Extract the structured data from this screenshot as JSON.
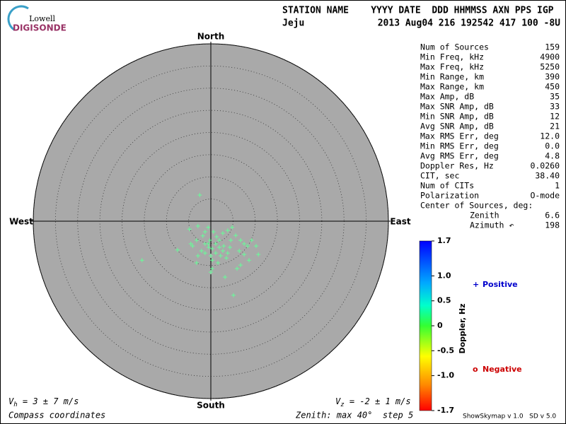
{
  "header": {
    "logo_top": "Lowell",
    "logo_bottom": "DIGISONDE",
    "columns": "STATION NAME    YYYY DATE  DDD HHMMSS AXN PPS IGP",
    "station": "Jeju",
    "record": "2013 Aug04 216 192542 417 100 -8U"
  },
  "chart_data": {
    "type": "skymap",
    "directions": {
      "north": "North",
      "south": "South",
      "east": "East",
      "west": "West"
    },
    "rlim": [
      0,
      40
    ],
    "rticks": [
      5,
      10,
      15,
      20,
      25,
      30,
      35,
      40
    ],
    "xlim": [
      -40,
      40
    ],
    "ylim": [
      -40,
      40
    ],
    "color": "#66ff99",
    "background": "#a9a9a9",
    "x": [
      -2.5,
      -4.8,
      -2.9,
      -0.6,
      -1.8,
      -3.2,
      -4.1,
      -7.5,
      -15.5,
      -1.3,
      -0.5,
      0.3,
      1.1,
      1.9,
      2.7,
      3.8,
      4.8,
      5.6,
      6.7,
      7.5,
      8.3,
      9.2,
      10.2,
      10.7,
      8.6,
      6.7,
      5.9,
      3.5,
      2.2,
      1.1,
      0.0,
      -1.3,
      -2.1,
      -2.9,
      -3.2,
      0.3,
      0.0,
      3.2,
      5.1,
      1.6,
      4.3,
      2.9,
      1.3,
      -0.2,
      0.6,
      2.7,
      -1.3,
      -4.5,
      4.5,
      6.4,
      7.5,
      0.3,
      1.9,
      3.8,
      -0.6
    ],
    "y": [
      5.9,
      -1.8,
      -1.1,
      -1.4,
      -3.3,
      -4.3,
      -5.6,
      -6.5,
      -8.8,
      -5.1,
      -5.9,
      -6.2,
      -5.1,
      -4.3,
      -2.7,
      -2.1,
      -1.4,
      -3.2,
      -4.3,
      -5.1,
      -5.6,
      -4.3,
      -5.6,
      -7.5,
      -8.8,
      -9.9,
      -10.7,
      -8.3,
      -7.8,
      -7.2,
      -7.8,
      -7.2,
      -6.7,
      -7.8,
      -9.4,
      -10.7,
      -11.5,
      -12.6,
      -16.7,
      -9.4,
      -5.9,
      -5.6,
      -3.5,
      -4.3,
      -2.4,
      -6.7,
      -2.4,
      -5.1,
      -4.3,
      -6.7,
      -7.5,
      -8.8,
      -5.9,
      -7.2,
      -5.1
    ],
    "colorbar": {
      "label": "Doppler, Hz",
      "lim": [
        -1.7,
        1.7
      ],
      "ticks": [
        1.7,
        {
          "value": 1,
          "label": "1.0"
        },
        0.5,
        0,
        -0.5,
        {
          "value": -1,
          "label": "-1.0"
        },
        -1.7
      ]
    },
    "legend": [
      {
        "marker": "+",
        "name": "Positive",
        "color": "#0000cc"
      },
      {
        "marker": "o",
        "name": "Negative",
        "color": "#cc0000"
      }
    ]
  },
  "stats": [
    [
      "Num of Sources",
      "159"
    ],
    [
      "Min Freq, kHz",
      "4900"
    ],
    [
      "Max Freq, kHz",
      "5250"
    ],
    [
      "Min Range, km",
      "390"
    ],
    [
      "Max Range, km",
      "450"
    ],
    [
      "Max Amp, dB",
      "35"
    ],
    [
      "Max SNR Amp, dB",
      "33"
    ],
    [
      "Min SNR Amp, dB",
      "12"
    ],
    [
      "Avg SNR Amp, dB",
      "21"
    ],
    [
      "Max RMS Err, deg",
      "12.0"
    ],
    [
      "Min RMS Err, deg",
      "0.0"
    ],
    [
      "Avg RMS Err, deg",
      "4.8"
    ],
    [
      "Doppler Res, Hz",
      "0.0260"
    ],
    [
      "CIT, sec",
      "38.40"
    ],
    [
      "Num of CITs",
      "1"
    ],
    [
      "Polarization",
      "O-mode"
    ]
  ],
  "center": {
    "title": "Center of Sources, deg:",
    "rows": [
      [
        "Zenith",
        "6.6"
      ],
      [
        "Azimuth ↶",
        "198"
      ]
    ]
  },
  "footer": {
    "vh_symbol": "V",
    "vh_sub": "h",
    "vh_text": " = 3 ± 7 m/s",
    "vz_symbol": "V",
    "vz_sub": "z",
    "vz_text": " = -2 ± 1 m/s",
    "coords": "Compass coordinates",
    "zenith": "Zenith: max 40°  step 5",
    "version": "ShowSkymap v 1.0   SD v 5.0"
  }
}
